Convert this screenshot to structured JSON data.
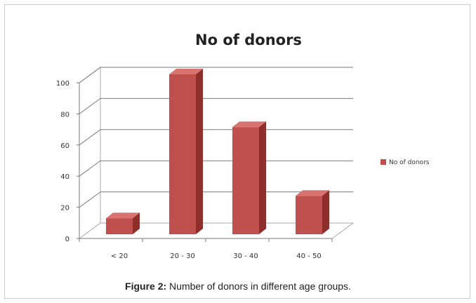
{
  "chart_data": {
    "type": "bar",
    "title": "No of donors",
    "categories": [
      "< 20",
      "20 - 30",
      "30 - 40",
      "40 - 50"
    ],
    "series": [
      {
        "name": "No of donors",
        "values": [
          10,
          100,
          67,
          24
        ],
        "color": "#c0504d"
      }
    ],
    "ylim": [
      0,
      100
    ],
    "yticks": [
      0,
      20,
      40,
      60,
      80,
      100
    ],
    "grid": true,
    "legend": "right",
    "style": "3d-column"
  },
  "caption": {
    "label": "Figure 2:",
    "text": " Number of donors in different age groups."
  }
}
